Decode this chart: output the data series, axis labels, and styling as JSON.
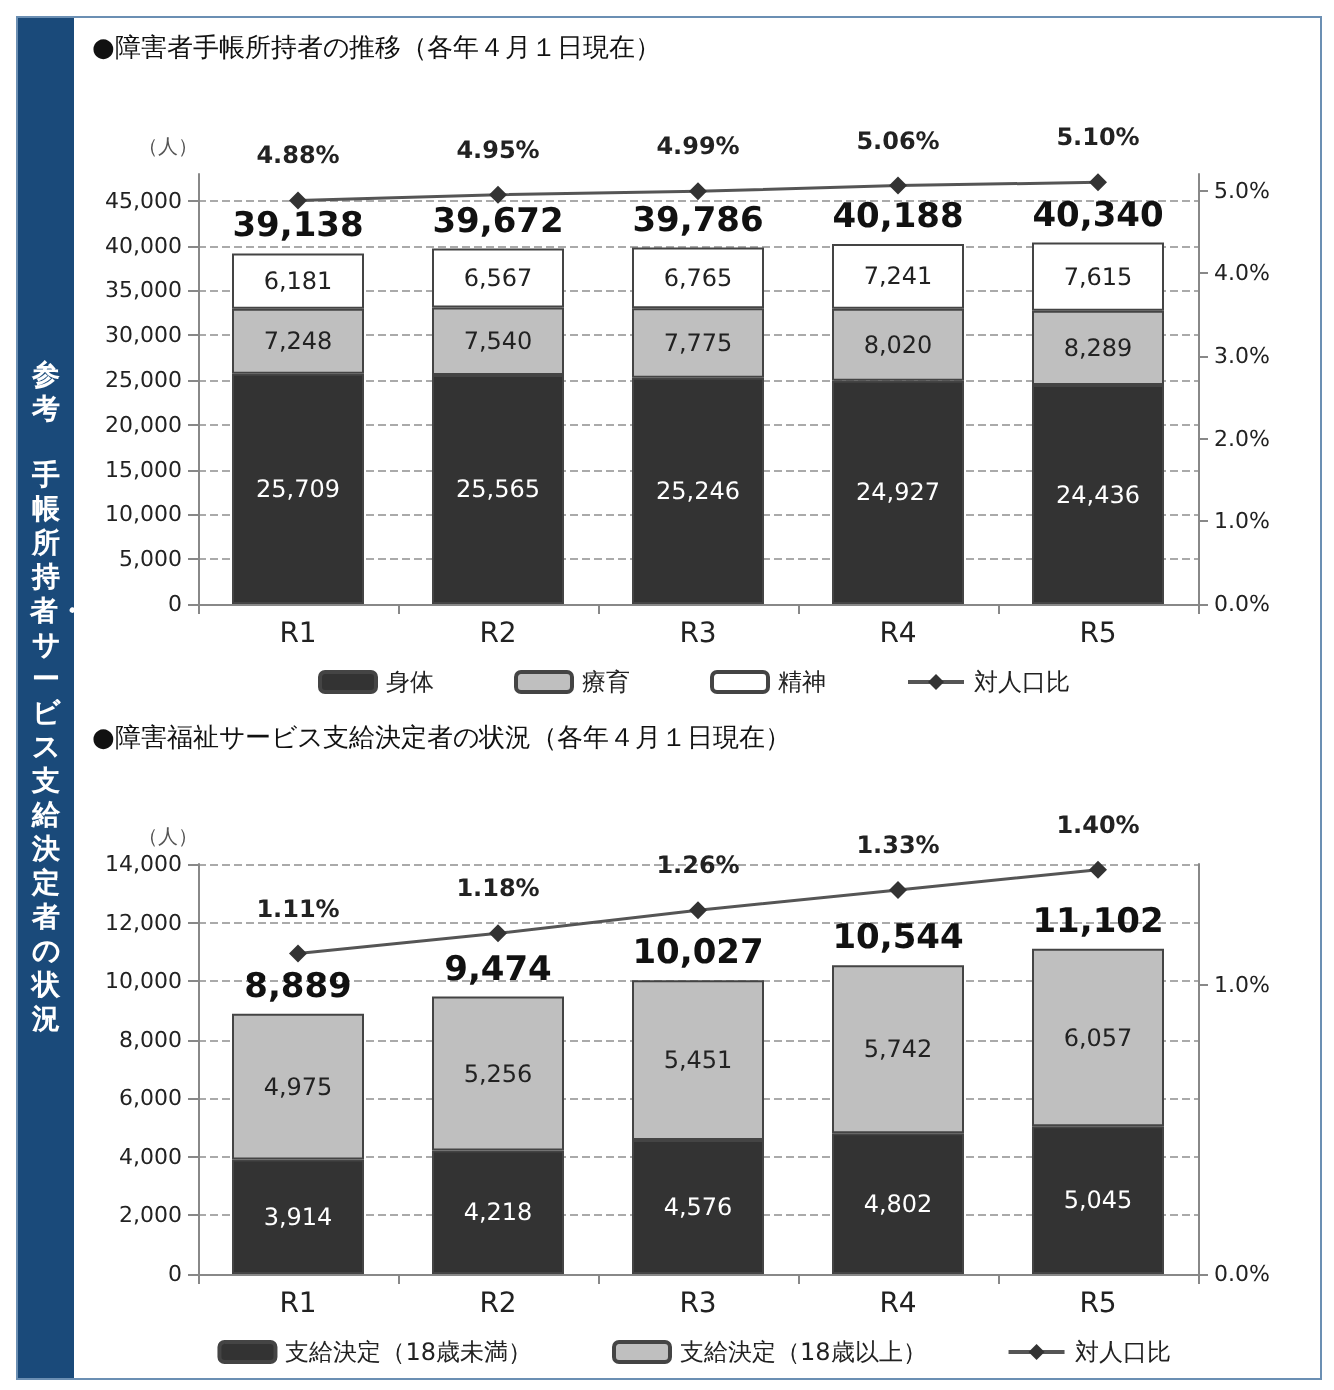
{
  "chart_data": [
    {
      "type": "bar",
      "title": "●障害者手帳所持者の推移（各年４月１日現在）",
      "annotations": [
        "参考",
        "手帳所持者・サービス支給決定者の状況"
      ],
      "ylabel": "（人）",
      "categories": [
        "R1",
        "R2",
        "R3",
        "R4",
        "R5"
      ],
      "stacked": true,
      "grid": "y",
      "legend": "bottom",
      "ylim": [
        0,
        48000
      ],
      "yticks": [
        0,
        {
          "value": 5000,
          "label": "5,000"
        },
        {
          "value": 10000,
          "label": "10,000"
        },
        {
          "value": 15000,
          "label": "15,000"
        },
        {
          "value": 20000,
          "label": "20,000"
        },
        {
          "value": 25000,
          "label": "25,000"
        },
        {
          "value": 30000,
          "label": "30,000"
        },
        {
          "value": 35000,
          "label": "35,000"
        },
        {
          "value": 40000,
          "label": "40,000"
        },
        {
          "value": 45000,
          "label": "45,000"
        }
      ],
      "y2lim": [
        0,
        5.2
      ],
      "y2ticks": [
        {
          "value": 0,
          "label": "0.0%"
        },
        {
          "value": 1,
          "label": "1.0%"
        },
        {
          "value": 2,
          "label": "2.0%"
        },
        {
          "value": 3,
          "label": "3.0%"
        },
        {
          "value": 4,
          "label": "4.0%"
        },
        {
          "value": 5,
          "label": "5.0%"
        }
      ],
      "totals": [
        "39,138",
        "39,672",
        "39,786",
        "40,188",
        "40,340"
      ],
      "series": [
        {
          "name": "身体",
          "color": "#333333",
          "values": [
            25709,
            25565,
            25246,
            24927,
            24436
          ],
          "value_labels": [
            "25,709",
            "25,565",
            "25,246",
            "24,927",
            "24,436"
          ]
        },
        {
          "name": "療育",
          "color": "#bfbfbf",
          "values": [
            7248,
            7540,
            7775,
            8020,
            8289
          ],
          "value_labels": [
            "7,248",
            "7,540",
            "7,775",
            "8,020",
            "8,289"
          ]
        },
        {
          "name": "精神",
          "color": "#ffffff",
          "values": [
            6181,
            6567,
            6765,
            7241,
            7615
          ],
          "value_labels": [
            "6,181",
            "6,567",
            "6,765",
            "7,241",
            "7,615"
          ]
        },
        {
          "name": "対人口比",
          "type": "line",
          "axis": "y2",
          "marker": "diamond",
          "color": "#555555",
          "values": [
            4.88,
            4.95,
            4.99,
            5.06,
            5.1
          ],
          "value_labels": [
            "4.88%",
            "4.95%",
            "4.99%",
            "5.06%",
            "5.10%"
          ]
        }
      ]
    },
    {
      "type": "bar",
      "title": "●障害福祉サービス支給決定者の状況（各年４月１日現在）",
      "ylabel": "（人）",
      "categories": [
        "R1",
        "R2",
        "R3",
        "R4",
        "R5"
      ],
      "stacked": true,
      "grid": "y",
      "legend": "bottom",
      "ylim": [
        0,
        14000
      ],
      "yticks": [
        0,
        {
          "value": 2000,
          "label": "2,000"
        },
        {
          "value": 4000,
          "label": "4,000"
        },
        {
          "value": 6000,
          "label": "6,000"
        },
        {
          "value": 8000,
          "label": "8,000"
        },
        {
          "value": 10000,
          "label": "10,000"
        },
        {
          "value": 12000,
          "label": "12,000"
        },
        {
          "value": 14000,
          "label": "14,000"
        }
      ],
      "y2lim": [
        0,
        1.42
      ],
      "y2ticks": [
        {
          "value": 0,
          "label": "0.0%"
        },
        {
          "value": 1,
          "label": "1.0%"
        }
      ],
      "totals": [
        "8,889",
        "9,474",
        "10,027",
        "10,544",
        "11,102"
      ],
      "series": [
        {
          "name": "支給決定（18歳未満）",
          "color": "#333333",
          "values": [
            3914,
            4218,
            4576,
            4802,
            5045
          ],
          "value_labels": [
            "3,914",
            "4,218",
            "4,576",
            "4,802",
            "5,045"
          ]
        },
        {
          "name": "支給決定（18歳以上）",
          "color": "#bfbfbf",
          "values": [
            4975,
            5256,
            5451,
            5742,
            6057
          ],
          "value_labels": [
            "4,975",
            "5,256",
            "5,451",
            "5,742",
            "6,057"
          ]
        },
        {
          "name": "対人口比",
          "type": "line",
          "axis": "y2",
          "marker": "diamond",
          "color": "#555555",
          "values": [
            1.11,
            1.18,
            1.26,
            1.33,
            1.4
          ],
          "value_labels": [
            "1.11%",
            "1.18%",
            "1.26%",
            "1.33%",
            "1.40%"
          ]
        }
      ]
    }
  ]
}
